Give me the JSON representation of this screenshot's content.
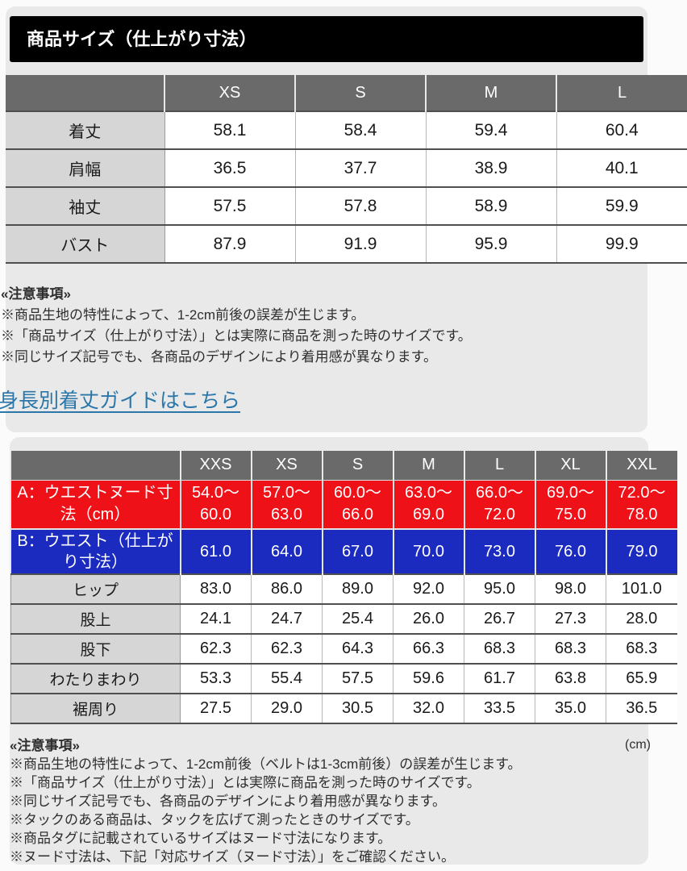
{
  "colors": {
    "accent_red": "#ee1118",
    "accent_blue": "#1b2abf",
    "link_blue": "#2b77a9",
    "header_gray": "#6a6a6a",
    "label_gray": "#d6d6d6",
    "title_bar_black": "#000000",
    "card_gray": "#e9e9e9"
  },
  "title_bar": {
    "label": "商品サイズ（仕上がり寸法）"
  },
  "size_table_1": {
    "columns": [
      "XS",
      "S",
      "M",
      "L"
    ],
    "rows": [
      {
        "label": "着丈",
        "style": "normal",
        "values": [
          "58.1",
          "58.4",
          "59.4",
          "60.4"
        ]
      },
      {
        "label": "肩幅",
        "style": "normal",
        "values": [
          "36.5",
          "37.7",
          "38.9",
          "40.1"
        ]
      },
      {
        "label": "袖丈",
        "style": "normal",
        "values": [
          "57.5",
          "57.8",
          "58.9",
          "59.9"
        ]
      },
      {
        "label": "バスト",
        "style": "normal",
        "values": [
          "87.9",
          "91.9",
          "95.9",
          "99.9"
        ]
      }
    ]
  },
  "notes_1": {
    "heading": "«注意事項»",
    "items": [
      "※商品生地の特性によって、1-2cm前後の誤差が生じます。",
      "※「商品サイズ（仕上がり寸法）」とは実際に商品を測った時のサイズです。",
      "※同じサイズ記号でも、各商品のデザインにより着用感が異なります。"
    ]
  },
  "guide_link": {
    "label": "身長別着丈ガイドはこちら"
  },
  "size_table_2": {
    "columns": [
      "XXS",
      "XS",
      "S",
      "M",
      "L",
      "XL",
      "XXL"
    ],
    "rows": [
      {
        "label": "A：ウエストヌード寸法（cm）",
        "style": "red",
        "values": [
          "54.0～60.0",
          "57.0～63.0",
          "60.0～66.0",
          "63.0～69.0",
          "66.0～72.0",
          "69.0～75.0",
          "72.0～78.0"
        ]
      },
      {
        "label": "B：ウエスト（仕上がり寸法）",
        "style": "blue",
        "values": [
          "61.0",
          "64.0",
          "67.0",
          "70.0",
          "73.0",
          "76.0",
          "79.0"
        ]
      },
      {
        "label": "ヒップ",
        "style": "normal",
        "values": [
          "83.0",
          "86.0",
          "89.0",
          "92.0",
          "95.0",
          "98.0",
          "101.0"
        ]
      },
      {
        "label": "股上",
        "style": "normal",
        "values": [
          "24.1",
          "24.7",
          "25.4",
          "26.0",
          "26.7",
          "27.3",
          "28.0"
        ]
      },
      {
        "label": "股下",
        "style": "normal",
        "values": [
          "62.3",
          "62.3",
          "64.3",
          "66.3",
          "68.3",
          "68.3",
          "68.3"
        ]
      },
      {
        "label": "わたりまわり",
        "style": "normal",
        "values": [
          "53.3",
          "55.4",
          "57.5",
          "59.6",
          "61.7",
          "63.8",
          "65.9"
        ]
      },
      {
        "label": "裾周り",
        "style": "normal",
        "values": [
          "27.5",
          "29.0",
          "30.5",
          "32.0",
          "33.5",
          "35.0",
          "36.5"
        ]
      }
    ]
  },
  "notes_2": {
    "heading": "«注意事項»",
    "unit_label": "(cm)",
    "items": [
      "※商品生地の特性によって、1-2cm前後（ベルトは1-3cm前後）の誤差が生じます。",
      "※「商品サイズ（仕上がり寸法）」とは実際に商品を測った時のサイズです。",
      "※同じサイズ記号でも、各商品のデザインにより着用感が異なります。",
      "※タックのある商品は、タックを広げて測ったときのサイズです。",
      "※商品タグに記載されているサイズはヌード寸法になります。",
      "※ヌード寸法は、下記「対応サイズ（ヌード寸法）」をご確認ください。"
    ]
  }
}
